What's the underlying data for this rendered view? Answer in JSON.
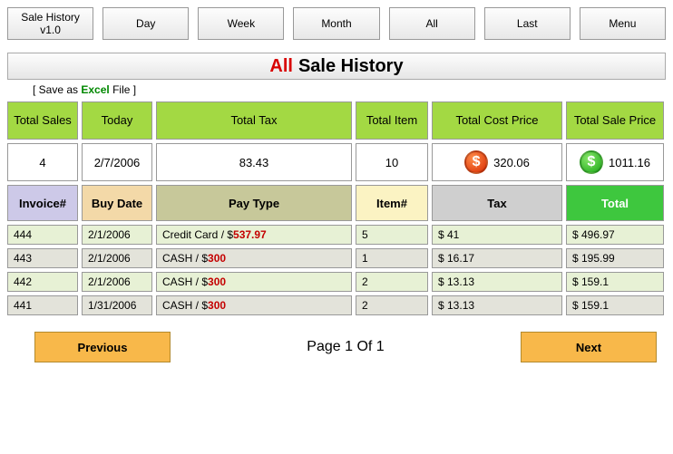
{
  "topButtons": {
    "b0": "Sale History\nv1.0",
    "b1": "Day",
    "b2": "Week",
    "b3": "Month",
    "b4": "All",
    "b5": "Last",
    "b6": "Menu"
  },
  "title": {
    "prefix": "All",
    "rest": "Sale History"
  },
  "saveLink": {
    "pre": "[ Save as ",
    "mid": "Excel",
    "post": " File ]"
  },
  "summary": {
    "headers": {
      "sales": "Total Sales",
      "today": "Today",
      "tax": "Total Tax",
      "items": "Total Item",
      "cost": "Total Cost Price",
      "sale": "Total Sale Price"
    },
    "values": {
      "sales": "4",
      "today": "2/7/2006",
      "tax": "83.43",
      "items": "10",
      "cost": "320.06",
      "sale": "1011.16"
    }
  },
  "columns": {
    "invoice": "Invoice#",
    "buydate": "Buy Date",
    "paytype": "Pay Type",
    "item": "Item#",
    "tax": "Tax",
    "total": "Total"
  },
  "rows": [
    {
      "invoice": "444",
      "date": "2/1/2006",
      "payPre": "Credit Card / $",
      "payAmt": "537.97",
      "item": "5",
      "tax": "$ 41",
      "total": "$ 496.97"
    },
    {
      "invoice": "443",
      "date": "2/1/2006",
      "payPre": "CASH / $",
      "payAmt": "300",
      "item": "1",
      "tax": "$ 16.17",
      "total": "$ 195.99"
    },
    {
      "invoice": "442",
      "date": "2/1/2006",
      "payPre": "CASH / $",
      "payAmt": "300",
      "item": "2",
      "tax": "$ 13.13",
      "total": "$ 159.1"
    },
    {
      "invoice": "441",
      "date": "1/31/2006",
      "payPre": "CASH / $",
      "payAmt": "300",
      "item": "2",
      "tax": "$ 13.13",
      "total": "$ 159.1"
    }
  ],
  "nav": {
    "prev": "Previous",
    "page": "Page 1 Of 1",
    "next": "Next"
  }
}
